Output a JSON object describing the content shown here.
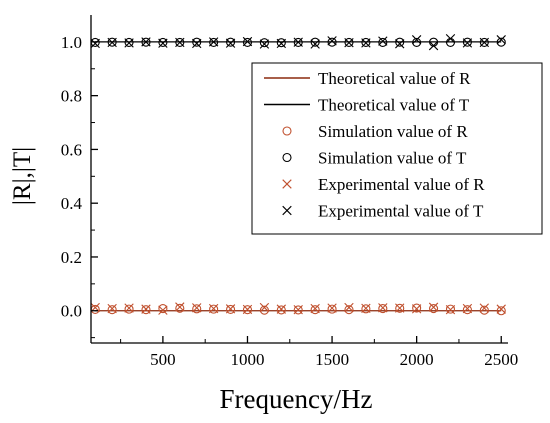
{
  "chart_data": {
    "type": "scatter",
    "xlabel": "Frequency/Hz",
    "ylabel": "|R|,|T|",
    "xlim": [
      75,
      2540
    ],
    "ylim": [
      -0.12,
      1.1
    ],
    "xticks": [
      500,
      1000,
      1500,
      2000,
      2500
    ],
    "yticks": [
      0.0,
      0.2,
      0.4,
      0.6,
      0.8,
      1.0
    ],
    "xtick_labels": [
      "500",
      "1000",
      "1500",
      "2000",
      "2500"
    ],
    "ytick_labels": [
      "0.0",
      "0.2",
      "0.4",
      "0.6",
      "0.8",
      "1.0"
    ],
    "grid": false,
    "legend_position": "top-right",
    "colors": {
      "R": "#c0502e",
      "T": "#000000",
      "R_line": "#8b2a0e"
    },
    "x": [
      100,
      200,
      300,
      400,
      500,
      600,
      700,
      800,
      900,
      1000,
      1100,
      1200,
      1300,
      1400,
      1500,
      1600,
      1700,
      1800,
      1900,
      2000,
      2100,
      2200,
      2300,
      2400,
      2500
    ],
    "series": [
      {
        "name": "Theoretical value of R",
        "style": "line",
        "color": "#8b2a0e",
        "values": [
          0,
          0,
          0,
          0,
          0,
          0,
          0,
          0,
          0,
          0,
          0,
          0,
          0,
          0,
          0,
          0,
          0,
          0,
          0,
          0,
          0,
          0,
          0,
          0,
          0
        ]
      },
      {
        "name": "Theoretical value of T",
        "style": "line",
        "color": "#000000",
        "values": [
          1,
          1,
          1,
          1,
          1,
          1,
          1,
          1,
          1,
          1,
          1,
          1,
          1,
          1,
          1,
          1,
          1,
          1,
          1,
          1,
          1,
          1,
          1,
          1,
          1
        ]
      },
      {
        "name": "Simulation value of R",
        "style": "circle",
        "color": "#c0502e",
        "values": [
          0.005,
          0.004,
          0.006,
          0.004,
          0.008,
          0.009,
          0.007,
          0.006,
          0.005,
          0.004,
          0.002,
          0.003,
          0.003,
          0.004,
          0.006,
          0.004,
          0.007,
          0.008,
          0.009,
          0.01,
          0.008,
          0.006,
          0.004,
          0.002,
          0.0
        ]
      },
      {
        "name": "Simulation value of T",
        "style": "circle",
        "color": "#000000",
        "values": [
          0.998,
          0.999,
          0.998,
          0.999,
          0.998,
          0.998,
          0.999,
          0.998,
          0.999,
          0.998,
          0.997,
          0.997,
          0.998,
          0.999,
          0.999,
          0.998,
          0.998,
          0.998,
          0.999,
          0.998,
          0.999,
          0.998,
          0.999,
          0.998,
          0.999
        ]
      },
      {
        "name": "Experimental value of R",
        "style": "cross",
        "color": "#c0502e",
        "values": [
          0.012,
          0.008,
          0.01,
          0.006,
          0.002,
          0.014,
          0.011,
          0.008,
          0.007,
          0.005,
          0.012,
          0.006,
          0.004,
          0.008,
          0.01,
          0.012,
          0.009,
          0.011,
          0.01,
          0.007,
          0.013,
          0.004,
          0.008,
          0.01,
          0.006
        ]
      },
      {
        "name": "Experimental value of T",
        "style": "cross",
        "color": "#000000",
        "values": [
          0.994,
          0.998,
          0.996,
          1.0,
          0.995,
          0.998,
          0.994,
          1.0,
          0.995,
          1.001,
          0.992,
          0.994,
          0.999,
          0.992,
          1.004,
          0.997,
          0.996,
          1.003,
          0.993,
          1.008,
          0.986,
          1.012,
          0.996,
          0.998,
          1.008
        ]
      }
    ]
  }
}
